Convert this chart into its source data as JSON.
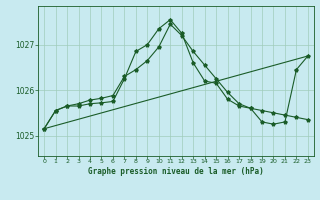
{
  "title": "Graphe pression niveau de la mer (hPa)",
  "background_color": "#c8eaf0",
  "grid_color": "#a0ccbb",
  "line_color": "#1a5c28",
  "xlim": [
    -0.5,
    23.5
  ],
  "ylim": [
    1024.55,
    1027.85
  ],
  "yticks": [
    1025,
    1026,
    1027
  ],
  "xticks": [
    0,
    1,
    2,
    3,
    4,
    5,
    6,
    7,
    8,
    9,
    10,
    11,
    12,
    13,
    14,
    15,
    16,
    17,
    18,
    19,
    20,
    21,
    22,
    23
  ],
  "series1_x": [
    0,
    1,
    2,
    3,
    4,
    5,
    6,
    7,
    8,
    9,
    10,
    11,
    12,
    13,
    14,
    15,
    16,
    17,
    18,
    19,
    20,
    21,
    22,
    23
  ],
  "series1_y": [
    1025.15,
    1025.55,
    1025.65,
    1025.65,
    1025.7,
    1025.72,
    1025.75,
    1026.25,
    1026.85,
    1027.0,
    1027.35,
    1027.55,
    1027.25,
    1026.6,
    1026.2,
    1026.15,
    1025.8,
    1025.65,
    1025.6,
    1025.55,
    1025.5,
    1025.45,
    1025.4,
    1025.35
  ],
  "series2_x": [
    0,
    1,
    2,
    3,
    4,
    5,
    6,
    7,
    8,
    9,
    10,
    11,
    12,
    13,
    14,
    15,
    16,
    17,
    18,
    19,
    20,
    21,
    22,
    23
  ],
  "series2_y": [
    1025.15,
    1025.55,
    1025.65,
    1025.7,
    1025.78,
    1025.82,
    1025.88,
    1026.3,
    1026.45,
    1026.65,
    1026.95,
    1027.45,
    1027.2,
    1026.85,
    1026.55,
    1026.25,
    1025.95,
    1025.7,
    1025.6,
    1025.3,
    1025.25,
    1025.3,
    1026.45,
    1026.75
  ],
  "series3_x": [
    0,
    23
  ],
  "series3_y": [
    1025.15,
    1026.75
  ],
  "figsize": [
    3.2,
    2.0
  ],
  "dpi": 100
}
